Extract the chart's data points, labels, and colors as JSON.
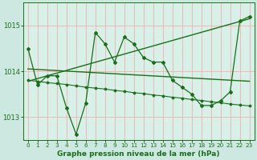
{
  "bg_color": "#cce8e0",
  "plot_bg_color": "#d8f0e8",
  "grid_color": "#f0b0b0",
  "line_color": "#1a6e1a",
  "xlabel": "Graphe pression niveau de la mer (hPa)",
  "xlim": [
    -0.5,
    23.5
  ],
  "ylim": [
    1012.5,
    1015.5
  ],
  "yticks": [
    1013,
    1014,
    1015
  ],
  "xticks": [
    0,
    1,
    2,
    3,
    4,
    5,
    6,
    7,
    8,
    9,
    10,
    11,
    12,
    13,
    14,
    15,
    16,
    17,
    18,
    19,
    20,
    21,
    22,
    23
  ],
  "series1_x": [
    0,
    1,
    2,
    3,
    4,
    5,
    6,
    7,
    8,
    9,
    10,
    11,
    12,
    13,
    14,
    15,
    16,
    17,
    18,
    19,
    20,
    21,
    22,
    23
  ],
  "series1_y": [
    1014.5,
    1013.7,
    1013.9,
    1013.9,
    1013.2,
    1012.62,
    1013.3,
    1014.85,
    1014.6,
    1014.2,
    1014.75,
    1014.6,
    1014.3,
    1014.2,
    1014.2,
    1013.8,
    1013.65,
    1013.5,
    1013.25,
    1013.25,
    1013.35,
    1013.55,
    1015.1,
    1015.2
  ],
  "series2_x": [
    0,
    1,
    2,
    3,
    4,
    5,
    6,
    7,
    8,
    9,
    10,
    11,
    12,
    13,
    14,
    15,
    16,
    17,
    18,
    19,
    20,
    21,
    22,
    23
  ],
  "series2_y": [
    1013.8,
    1013.78,
    1013.75,
    1013.73,
    1013.71,
    1013.68,
    1013.65,
    1013.63,
    1013.61,
    1013.58,
    1013.56,
    1013.53,
    1013.51,
    1013.48,
    1013.46,
    1013.43,
    1013.41,
    1013.38,
    1013.36,
    1013.33,
    1013.31,
    1013.28,
    1013.26,
    1013.24
  ],
  "trend1_x": [
    0,
    23
  ],
  "trend1_y": [
    1014.05,
    1013.78
  ],
  "trend2_x": [
    0,
    23
  ],
  "trend2_y": [
    1013.78,
    1015.15
  ]
}
